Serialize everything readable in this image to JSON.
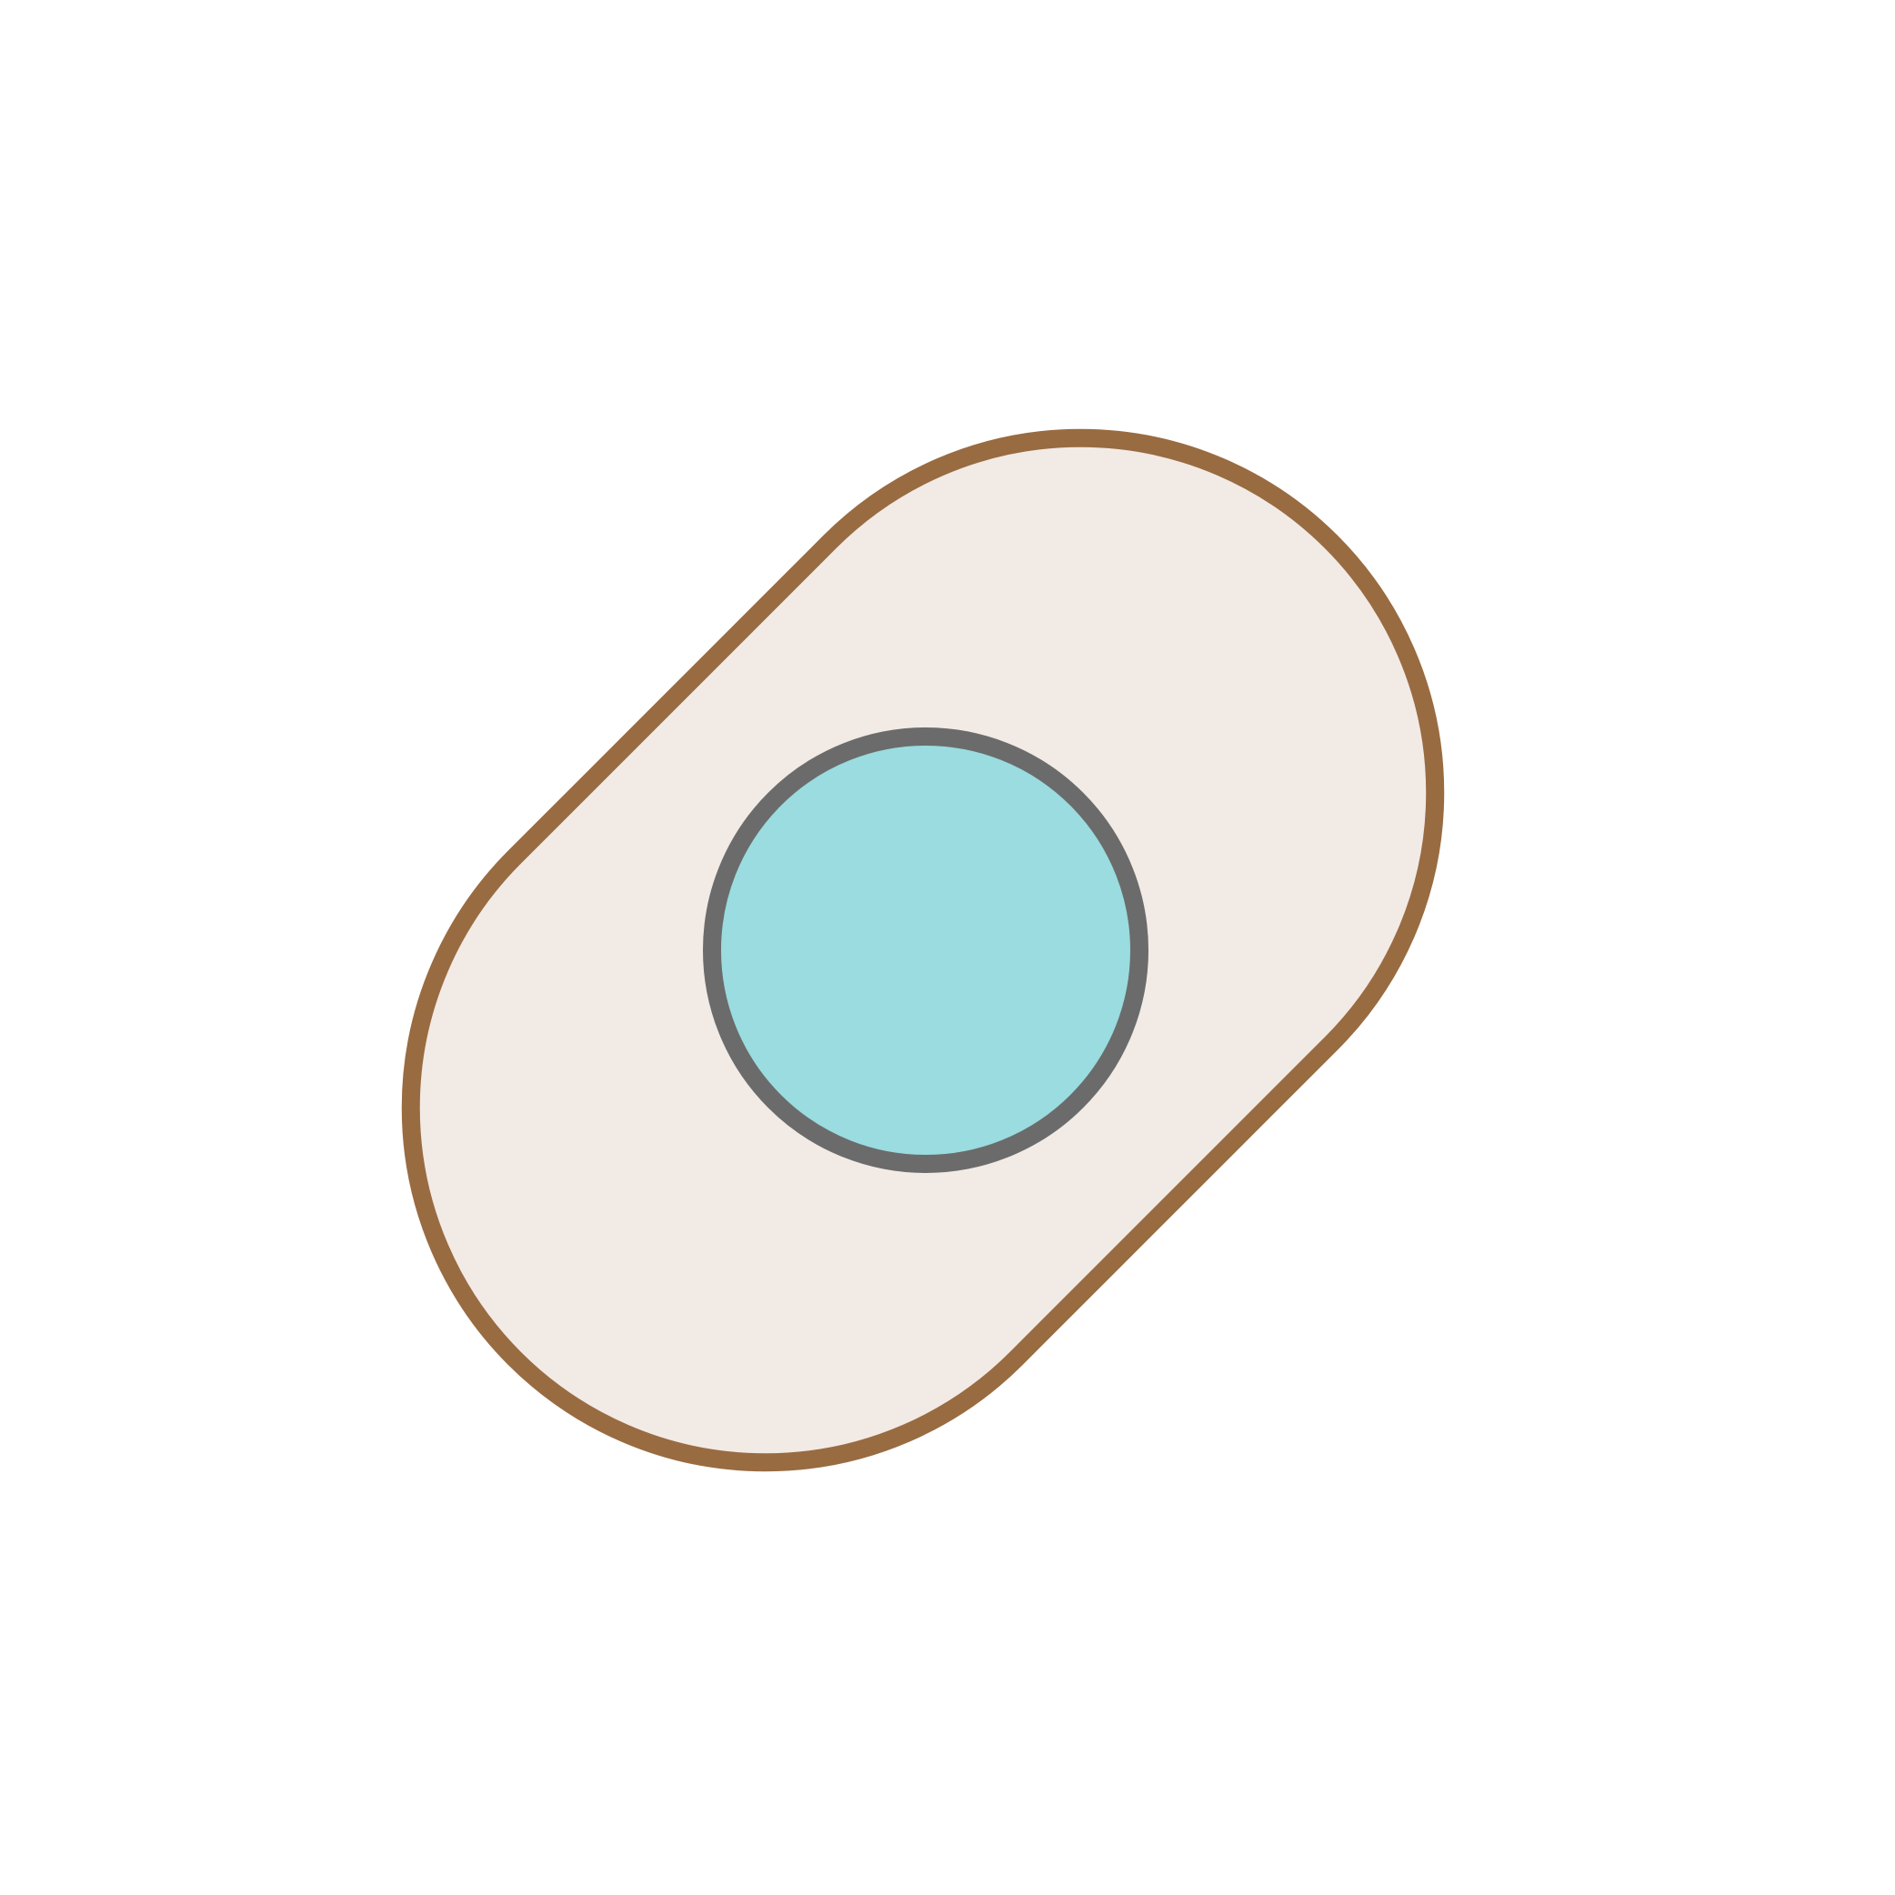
{
  "illustration": {
    "subject": "adhesive-bandage-icon",
    "colors": {
      "background": "#ffffff",
      "bandage_fill": "#f2eae5",
      "bandage_stroke": "#996b41",
      "pad_fill": "#9adcdf",
      "pad_stroke": "#6b6b6b"
    }
  }
}
